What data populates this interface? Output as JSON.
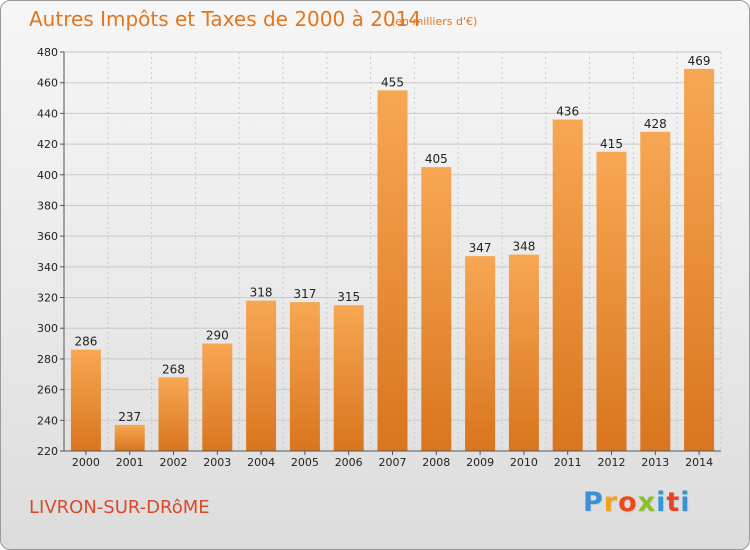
{
  "header": {
    "title": "Autres Impôts et Taxes de 2000 à 2014",
    "subtitle": "(en milliers d'€)"
  },
  "footer": {
    "town": "LIVRON-SUR-DRôME",
    "logo_letters": [
      "P",
      "r",
      "o",
      "x",
      "i",
      "t",
      "i"
    ],
    "logo_colors": [
      "#3b8fd4",
      "#f0a21c",
      "#e94b1f",
      "#8cbd2c",
      "#2d9ad6",
      "#e8432a",
      "#3b8fd4"
    ]
  },
  "colors": {
    "bar_light": "#f7a753",
    "bar_dark": "#d9751e",
    "grid": "#c9c9c9",
    "axis": "#555555"
  },
  "chart_data": {
    "type": "bar",
    "categories": [
      "2000",
      "2001",
      "2002",
      "2003",
      "2004",
      "2005",
      "2006",
      "2007",
      "2008",
      "2009",
      "2010",
      "2011",
      "2012",
      "2013",
      "2014"
    ],
    "values": [
      286,
      237,
      268,
      290,
      318,
      317,
      315,
      455,
      405,
      347,
      348,
      436,
      415,
      428,
      469
    ],
    "yticks": [
      220,
      240,
      260,
      280,
      300,
      320,
      340,
      360,
      380,
      400,
      420,
      440,
      460,
      480
    ],
    "ylim": [
      220,
      480
    ],
    "grid": true,
    "legend": "none"
  }
}
